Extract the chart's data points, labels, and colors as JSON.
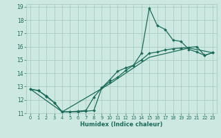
{
  "xlabel": "Humidex (Indice chaleur)",
  "bg_color": "#cce8e0",
  "grid_color": "#aaccbf",
  "line_color": "#1a6b5a",
  "xlim": [
    -0.5,
    23.5
  ],
  "ylim": [
    11,
    19.2
  ],
  "xticks": [
    0,
    1,
    2,
    3,
    4,
    5,
    6,
    7,
    8,
    9,
    10,
    11,
    12,
    13,
    14,
    15,
    16,
    17,
    18,
    19,
    20,
    21,
    22,
    23
  ],
  "yticks": [
    11,
    12,
    13,
    14,
    15,
    16,
    17,
    18,
    19
  ],
  "line1_x": [
    0,
    1,
    2,
    3,
    4,
    5,
    6,
    7,
    8,
    9,
    10,
    11,
    12,
    13,
    14,
    15,
    16,
    17,
    18,
    19,
    20,
    21,
    22,
    23
  ],
  "line1_y": [
    12.8,
    12.7,
    12.3,
    11.8,
    11.1,
    11.1,
    11.1,
    11.15,
    11.2,
    12.9,
    13.5,
    14.15,
    14.4,
    14.6,
    15.5,
    18.9,
    17.6,
    17.3,
    16.5,
    16.4,
    15.8,
    15.6,
    15.35,
    15.55
  ],
  "line2_x": [
    0,
    1,
    2,
    3,
    4,
    5,
    6,
    7,
    8,
    9,
    10,
    11,
    12,
    13,
    14,
    15,
    16,
    17,
    18,
    19,
    20,
    21,
    22,
    23
  ],
  "line2_y": [
    12.8,
    12.7,
    12.25,
    11.8,
    11.1,
    11.1,
    11.15,
    11.2,
    12.2,
    12.9,
    13.35,
    13.7,
    14.2,
    14.6,
    15.0,
    15.5,
    15.6,
    15.75,
    15.85,
    15.9,
    15.95,
    16.0,
    15.35,
    15.55
  ],
  "line3_x": [
    0,
    4,
    10,
    15,
    20,
    23
  ],
  "line3_y": [
    12.8,
    11.1,
    13.2,
    15.2,
    15.9,
    15.55
  ]
}
